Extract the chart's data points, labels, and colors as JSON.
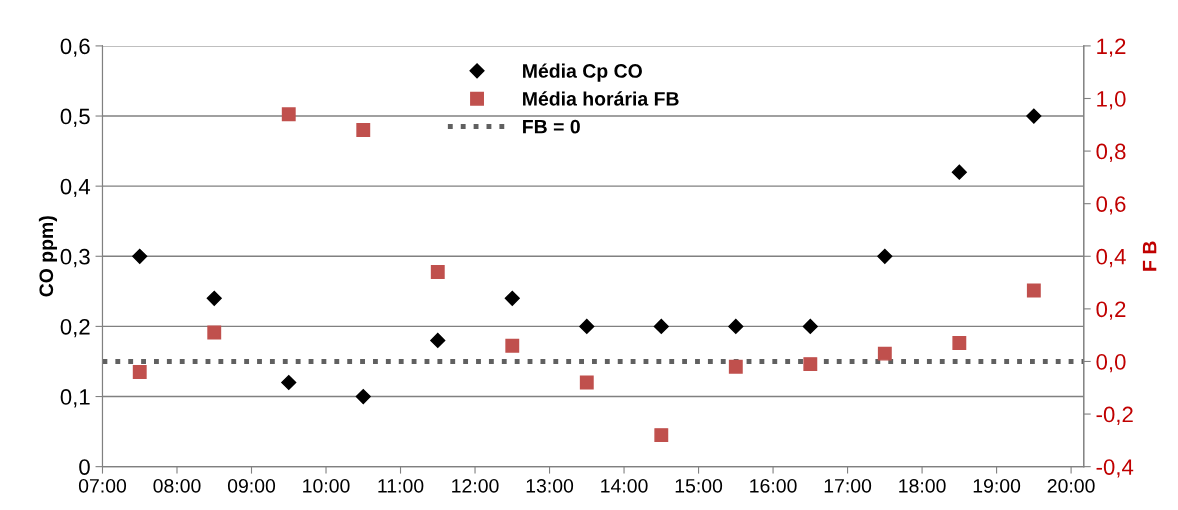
{
  "chart_data": {
    "type": "scatter",
    "ylabel": "CO ppm)",
    "y2label": "F B",
    "x": [
      7.5,
      8.5,
      9.5,
      10.5,
      11.5,
      12.5,
      13.5,
      14.5,
      15.5,
      16.5,
      17.5,
      18.5,
      19.5
    ],
    "series": [
      {
        "name": "Média Cp CO",
        "color": "#000000",
        "marker": "diamond",
        "values": [
          0.3,
          0.24,
          0.12,
          0.1,
          0.18,
          0.24,
          0.2,
          0.2,
          0.2,
          0.2,
          0.3,
          0.42,
          0.5
        ]
      },
      {
        "name": "Média horária FB",
        "color": "#c0504d",
        "marker": "square",
        "axis": "y2",
        "values": [
          -0.04,
          0.11,
          0.94,
          0.88,
          0.34,
          0.06,
          -0.08,
          -0.28,
          -0.02,
          -0.01,
          0.03,
          0.07,
          0.27
        ]
      }
    ],
    "ref_lines": [
      {
        "axis": "y2",
        "value": 0,
        "label": "FB = 0",
        "color": "#606060",
        "line_style": "dotted"
      }
    ],
    "xlim": [
      7,
      20.17
    ],
    "xticks": [
      {
        "value": 7,
        "label": "07:00"
      },
      {
        "value": 8,
        "label": "08:00"
      },
      {
        "value": 9,
        "label": "09:00"
      },
      {
        "value": 10,
        "label": "10:00"
      },
      {
        "value": 11,
        "label": "11:00"
      },
      {
        "value": 12,
        "label": "12:00"
      },
      {
        "value": 13,
        "label": "13:00"
      },
      {
        "value": 14,
        "label": "14:00"
      },
      {
        "value": 15,
        "label": "15:00"
      },
      {
        "value": 16,
        "label": "16:00"
      },
      {
        "value": 17,
        "label": "17:00"
      },
      {
        "value": 18,
        "label": "18:00"
      },
      {
        "value": 19,
        "label": "19:00"
      },
      {
        "value": 20,
        "label": "20:00"
      }
    ],
    "ylim": [
      0,
      0.6
    ],
    "yticks": [
      0,
      {
        "value": 0.1,
        "label": "0,1"
      },
      {
        "value": 0.2,
        "label": "0,2"
      },
      {
        "value": 0.3,
        "label": "0,3"
      },
      {
        "value": 0.4,
        "label": "0,4"
      },
      {
        "value": 0.5,
        "label": "0,5"
      },
      {
        "value": 0.6,
        "label": "0,6"
      }
    ],
    "y2lim": [
      -0.4,
      1.2
    ],
    "y2ticks": [
      {
        "value": -0.4,
        "label": "-0,4"
      },
      {
        "value": -0.2,
        "label": "-0,2"
      },
      {
        "value": 0,
        "label": "0,0"
      },
      {
        "value": 0.2,
        "label": "0,2"
      },
      {
        "value": 0.4,
        "label": "0,4"
      },
      {
        "value": 0.6,
        "label": "0,6"
      },
      {
        "value": 0.8,
        "label": "0,8"
      },
      {
        "value": 1.0,
        "label": "1,0"
      },
      {
        "value": 1.2,
        "label": "1,2"
      }
    ],
    "grid": "y",
    "legend": "top"
  }
}
